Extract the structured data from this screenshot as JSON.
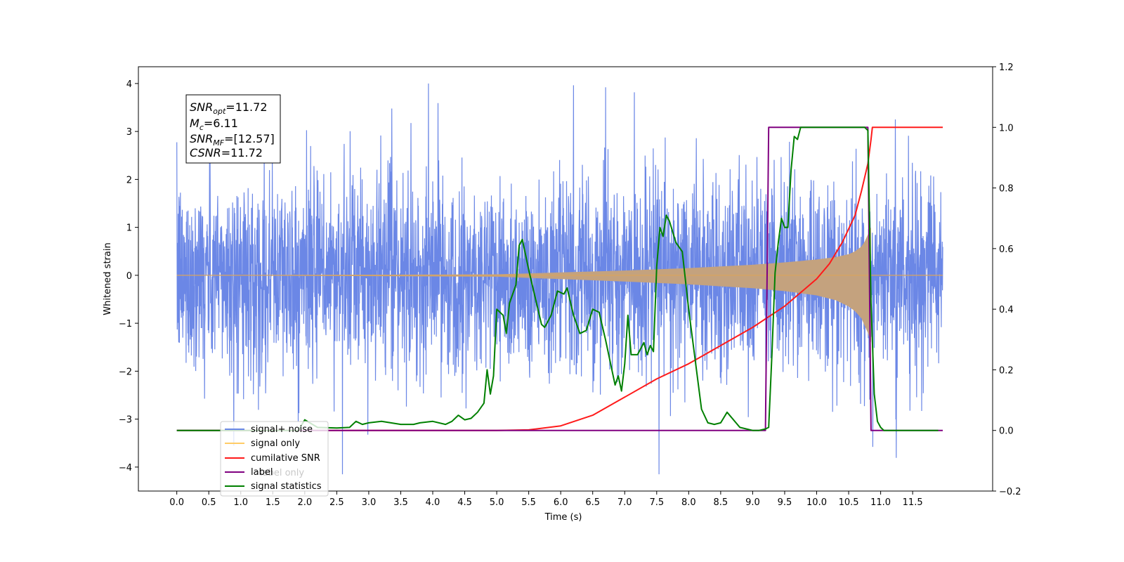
{
  "chart_data": {
    "type": "line",
    "xlabel": "Time (s)",
    "ylabel": "Whitened strain",
    "xlim": [
      -0.6,
      12.75
    ],
    "ylim": [
      -4.5,
      4.35
    ],
    "y2lim": [
      -0.2,
      1.2
    ],
    "xticks": [
      "0.0",
      "0.5",
      "1.0",
      "1.5",
      "2.0",
      "2.5",
      "3.0",
      "3.5",
      "4.0",
      "4.5",
      "5.0",
      "5.5",
      "6.0",
      "6.5",
      "7.0",
      "7.5",
      "8.0",
      "8.5",
      "9.0",
      "9.5",
      "10.0",
      "10.5",
      "11.0",
      "11.5"
    ],
    "yticks": [
      "4",
      "3",
      "2",
      "1",
      "0",
      "−1",
      "−2",
      "−3",
      "−4"
    ],
    "y2ticks": [
      "1.2",
      "1.0",
      "0.8",
      "0.6",
      "0.4",
      "0.2",
      "0.0",
      "−0.2"
    ],
    "grid": false,
    "legend_position": "lower-left",
    "colors": {
      "signal_noise": "#6b87e6",
      "signal_only": "#d9a45f",
      "signal_only_envelope": "#c4a27e",
      "cumulative_snr": "#ff1a1a",
      "label": "#800080",
      "signal_statistics": "#008000"
    },
    "annotation": {
      "snr_opt": {
        "main": "SNR",
        "sub": "opt",
        "value": "=11.72"
      },
      "mc": {
        "main": "M",
        "sub": "c",
        "value": "=6.11"
      },
      "snr_mf": {
        "main": "SNR",
        "sub": "MF",
        "value": "=[12.57]"
      },
      "csnr": {
        "main": "CSNR",
        "sub": "",
        "value": "=11.72"
      }
    },
    "series": [
      {
        "name": "signal+ noise",
        "axis": "left",
        "description": "whitened noise, amplitude roughly ±2.5 with spikes to ±4",
        "x_range": [
          0.0,
          11.97
        ],
        "noise_band": [
          -2.4,
          2.4
        ]
      },
      {
        "name": "signal only",
        "axis": "left",
        "x_range": [
          0.0,
          11.97
        ],
        "envelope_x": [
          0.0,
          5.0,
          6.0,
          7.0,
          8.0,
          9.0,
          9.5,
          10.0,
          10.3,
          10.5,
          10.6,
          10.7,
          10.75,
          10.8,
          10.85
        ],
        "envelope_upper": [
          0.0,
          0.02,
          0.06,
          0.1,
          0.15,
          0.22,
          0.27,
          0.33,
          0.38,
          0.44,
          0.5,
          0.6,
          0.7,
          0.85,
          1.0
        ],
        "envelope_lower": [
          0.0,
          -0.03,
          -0.08,
          -0.13,
          -0.19,
          -0.27,
          -0.33,
          -0.42,
          -0.52,
          -0.65,
          -0.75,
          -0.9,
          -1.05,
          -1.2,
          -1.4
        ]
      },
      {
        "name": "cumilative SNR",
        "axis": "right",
        "x": [
          0.0,
          5.0,
          5.5,
          6.0,
          6.5,
          7.0,
          7.5,
          8.0,
          8.5,
          9.0,
          9.5,
          10.0,
          10.2,
          10.4,
          10.6,
          10.7,
          10.8,
          10.85,
          10.87,
          11.0,
          11.5,
          11.97
        ],
        "values": [
          0.0,
          0.0,
          0.002,
          0.015,
          0.05,
          0.11,
          0.17,
          0.22,
          0.28,
          0.34,
          0.41,
          0.5,
          0.55,
          0.62,
          0.71,
          0.79,
          0.88,
          0.96,
          1.0,
          1.0,
          1.0,
          1.0
        ]
      },
      {
        "name": "label",
        "axis": "right",
        "x": [
          0.0,
          9.2,
          9.25,
          10.8,
          10.85,
          11.97
        ],
        "values": [
          0.0,
          0.0,
          1.0,
          1.0,
          0.0,
          0.0
        ]
      },
      {
        "name": "signal statistics",
        "axis": "right",
        "x": [
          0.0,
          1.9,
          2.0,
          2.2,
          2.5,
          2.7,
          2.8,
          2.9,
          3.0,
          3.2,
          3.5,
          3.7,
          3.8,
          4.0,
          4.2,
          4.3,
          4.4,
          4.5,
          4.6,
          4.7,
          4.8,
          4.85,
          4.9,
          4.95,
          5.0,
          5.1,
          5.15,
          5.2,
          5.3,
          5.35,
          5.4,
          5.45,
          5.5,
          5.6,
          5.7,
          5.75,
          5.85,
          5.95,
          6.05,
          6.1,
          6.2,
          6.3,
          6.4,
          6.5,
          6.6,
          6.7,
          6.8,
          6.85,
          6.9,
          6.95,
          7.0,
          7.05,
          7.1,
          7.2,
          7.3,
          7.35,
          7.4,
          7.45,
          7.5,
          7.55,
          7.6,
          7.65,
          7.7,
          7.8,
          7.9,
          8.0,
          8.2,
          8.3,
          8.4,
          8.5,
          8.6,
          8.8,
          9.0,
          9.1,
          9.2,
          9.25,
          9.3,
          9.35,
          9.4,
          9.45,
          9.5,
          9.55,
          9.6,
          9.65,
          9.7,
          9.75,
          9.8,
          9.85,
          9.9,
          10.0,
          10.2,
          10.4,
          10.6,
          10.75,
          10.8,
          10.85,
          10.9,
          10.95,
          11.0,
          11.05,
          11.1,
          11.2,
          11.5,
          11.9
        ],
        "values": [
          0.0,
          0.0,
          0.035,
          0.01,
          0.008,
          0.01,
          0.03,
          0.02,
          0.025,
          0.03,
          0.02,
          0.02,
          0.025,
          0.03,
          0.02,
          0.03,
          0.05,
          0.035,
          0.04,
          0.06,
          0.09,
          0.2,
          0.12,
          0.18,
          0.4,
          0.38,
          0.32,
          0.42,
          0.48,
          0.61,
          0.63,
          0.58,
          0.53,
          0.44,
          0.35,
          0.34,
          0.38,
          0.46,
          0.45,
          0.47,
          0.38,
          0.32,
          0.33,
          0.4,
          0.39,
          0.3,
          0.2,
          0.15,
          0.18,
          0.13,
          0.22,
          0.38,
          0.25,
          0.25,
          0.29,
          0.25,
          0.28,
          0.26,
          0.54,
          0.67,
          0.64,
          0.71,
          0.69,
          0.62,
          0.59,
          0.4,
          0.07,
          0.025,
          0.02,
          0.025,
          0.06,
          0.01,
          0.0,
          0.0,
          0.005,
          0.01,
          0.25,
          0.52,
          0.62,
          0.7,
          0.67,
          0.67,
          0.86,
          0.97,
          0.96,
          1.0,
          1.0,
          1.0,
          1.0,
          1.0,
          1.0,
          1.0,
          1.0,
          1.0,
          0.99,
          0.42,
          0.12,
          0.03,
          0.01,
          0.0,
          0.0,
          0.0,
          0.0,
          0.0
        ]
      }
    ],
    "legend_entries": [
      "signal+ noise",
      "signal only",
      "cumilative SNR",
      "label",
      "label only",
      "signal statistics"
    ]
  }
}
